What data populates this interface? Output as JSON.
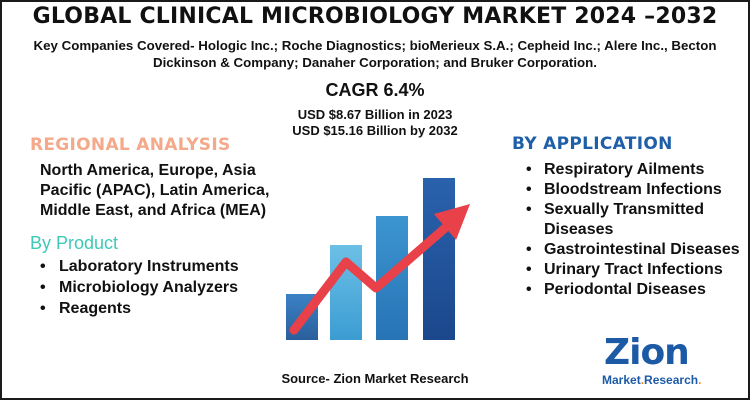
{
  "title": "GLOBAL CLINICAL MICROBIOLOGY MARKET 2024 –2032",
  "companies": "Key Companies Covered- Hologic Inc.; Roche Diagnostics; bioMerieux S.A.; Cepheid Inc.; Alere Inc., Becton Dickinson & Company; Danaher Corporation; and Bruker Corporation.",
  "cagr": "CAGR 6.4%",
  "market_2023": "USD $8.67 Billion in 2023",
  "market_2032": "USD $15.16 Billion by 2032",
  "regional": {
    "heading": "REGIONAL ANALYSIS",
    "text": "North America, Europe, Asia Pacific (APAC), Latin America, Middle East, and Africa (MEA)"
  },
  "product": {
    "heading": "By Product",
    "items": [
      "Laboratory Instruments",
      "Microbiology Analyzers",
      "Reagents"
    ]
  },
  "application": {
    "heading": "BY APPLICATION",
    "items": [
      "Respiratory Ailments",
      "Bloodstream Infections",
      "Sexually Transmitted Diseases",
      "Gastrointestinal Diseases",
      "Urinary Tract Infections",
      "Periodontal Diseases"
    ]
  },
  "bullet": "•",
  "source": "Source- Zion Market Research",
  "logo": {
    "main": "Zion",
    "sub_a": "Market",
    "sub_dot": ".",
    "sub_b": "Research",
    "sub_end": "."
  },
  "colors": {
    "regional_heading": "#f4a98a",
    "product_heading": "#3ec9b8",
    "application_heading": "#1f5fa8",
    "arrow": "#e8414a",
    "bars": [
      "#2f6fb0",
      "#4aa3d6",
      "#2a7fc1",
      "#1d4f9a"
    ]
  },
  "icons": [
    "growth-bar-chart-illustration",
    "rising-arrow-icon"
  ]
}
